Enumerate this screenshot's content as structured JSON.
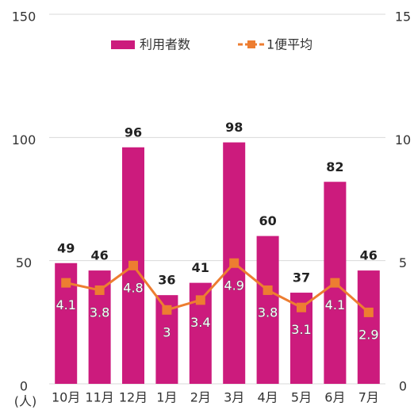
{
  "chart_data": {
    "type": "bar",
    "categories": [
      "10月",
      "11月",
      "12月",
      "1月",
      "2月",
      "3月",
      "4月",
      "5月",
      "6月",
      "7月"
    ],
    "series": [
      {
        "name": "利用者数",
        "type": "bar",
        "color": "#cc1b7d",
        "values": [
          49,
          46,
          96,
          36,
          41,
          98,
          60,
          37,
          82,
          46
        ]
      },
      {
        "name": "1便平均",
        "type": "line",
        "axis": "y2",
        "color": "#ed7d31",
        "values": [
          4.1,
          3.8,
          4.8,
          3.0,
          3.4,
          4.9,
          3.8,
          3.1,
          4.1,
          2.9
        ]
      }
    ],
    "ylim": [
      0,
      150
    ],
    "yticks": [
      0,
      50,
      100,
      150
    ],
    "y2lim": [
      0,
      15
    ],
    "y2ticks": [
      0,
      5,
      10,
      15
    ],
    "y_unit_label": "(人)",
    "grid": true,
    "legend": "top"
  }
}
